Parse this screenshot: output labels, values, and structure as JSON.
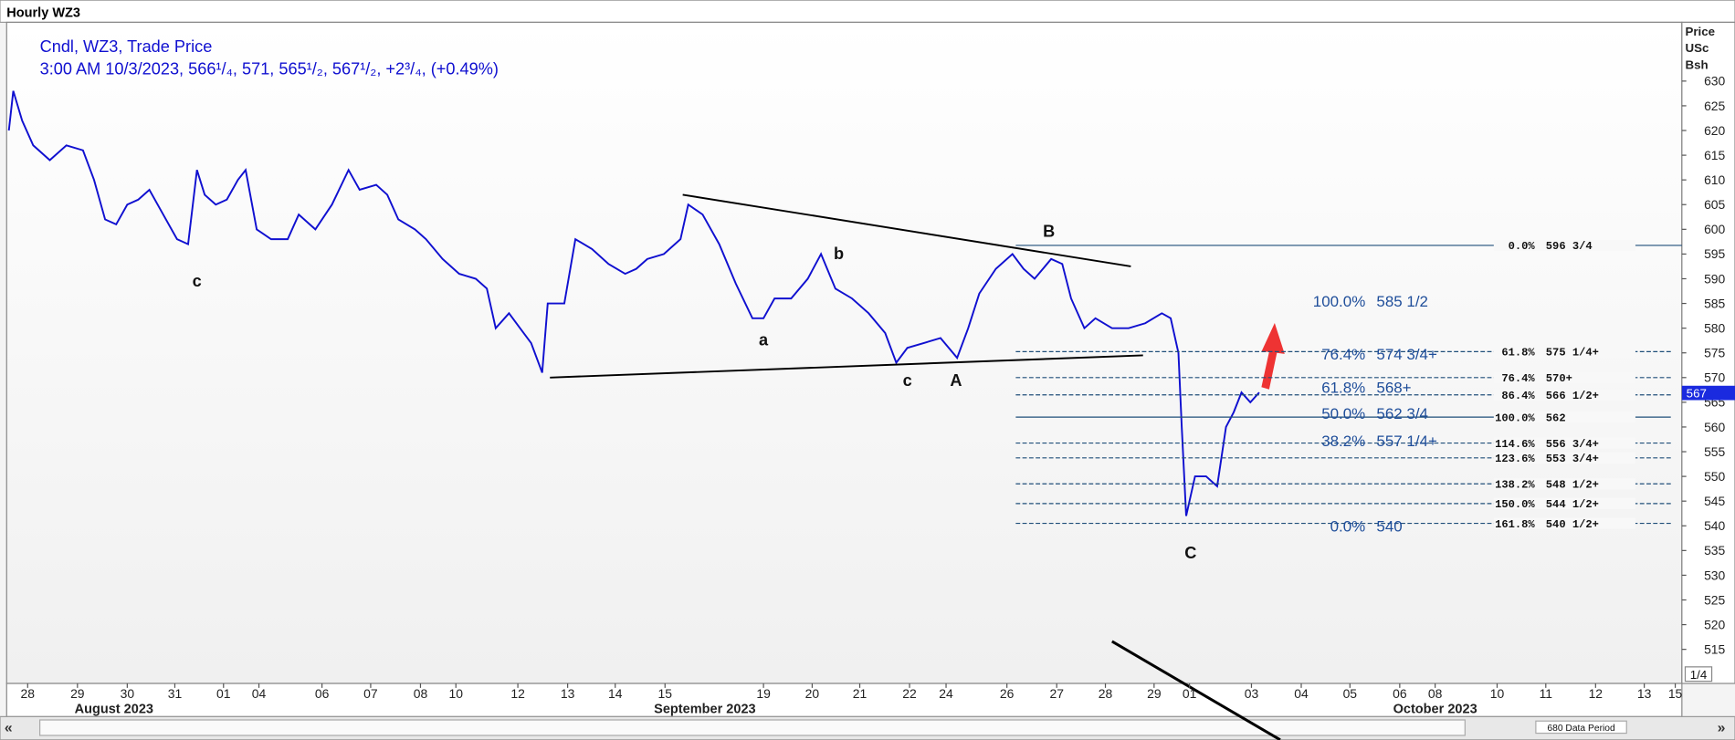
{
  "chart_data": {
    "type": "line",
    "title": "Hourly WZ3",
    "legend_line1": "Cndl, WZ3, Trade Price",
    "legend_line2": "3:00 AM 10/3/2023, 566¹/₄, 571, 565¹/₂, 567¹/₂, +2³/₄, (+0.49%)",
    "y_label": [
      "Price",
      "USc",
      "Bsh"
    ],
    "series": [
      {
        "name": "WZ3",
        "color": "#1010d0",
        "x": [
          0,
          0.4,
          1.2,
          2.2,
          3.7,
          5.2,
          6.7,
          7.7,
          8.7,
          9.7,
          10.7,
          11.7,
          12.7,
          13.7,
          15.2,
          16.2,
          17.0,
          17.7,
          18.7,
          19.7,
          20.7,
          21.4,
          22.4,
          23.7,
          25.2,
          26.2,
          27.7,
          29.2,
          30.7,
          31.7,
          33.2,
          34.2,
          35.2,
          36.7,
          37.7,
          39.2,
          40.7,
          42.2,
          43.2,
          44.0,
          45.2,
          46.2,
          47.2,
          48.2,
          48.7,
          50.2,
          51.2,
          52.7,
          54.2,
          55.7,
          56.7,
          57.7,
          59.2,
          60.7,
          61.4,
          62.7,
          64.2,
          65.7,
          67.2,
          68.2,
          69.2,
          70.7,
          72.2,
          73.4,
          74.7,
          76.2,
          77.7,
          79.2,
          80.2,
          81.2,
          82.7,
          84.2,
          85.7,
          86.7,
          87.7,
          89.2,
          90.7,
          91.7,
          92.7,
          94.2,
          95.2,
          96.0,
          97.2,
          98.2,
          99.7,
          101.2,
          102.7,
          104.2,
          105.0,
          105.7,
          106.0,
          106.4,
          107.2,
          108.2,
          109.2,
          110.0,
          110.7,
          111.4,
          112.2,
          113.0
        ],
        "values": [
          620,
          628,
          622,
          617,
          614,
          617,
          616,
          610,
          602,
          601,
          605,
          606,
          608,
          604,
          598,
          597,
          612,
          607,
          605,
          606,
          610,
          612,
          600,
          598,
          598,
          603,
          600,
          605,
          612,
          608,
          609,
          607,
          602,
          600,
          598,
          594,
          591,
          590,
          588,
          580,
          583,
          580,
          577,
          571,
          585,
          585,
          598,
          596,
          593,
          591,
          592,
          594,
          595,
          598,
          605,
          603,
          597,
          589,
          582,
          582,
          586,
          586,
          590,
          595,
          588,
          586,
          583,
          579,
          573,
          576,
          577,
          578,
          574,
          580,
          587,
          592,
          595,
          592,
          590,
          594,
          593,
          586,
          580,
          582,
          580,
          580,
          581,
          583,
          582,
          575,
          560,
          542,
          550,
          550,
          548,
          560,
          563,
          567,
          565,
          567
        ]
      }
    ],
    "xlim": [
      0,
      151.2
    ],
    "ylim": [
      508.1,
      641.9
    ],
    "yticks": [
      515,
      520,
      525,
      530,
      535,
      540,
      545,
      550,
      555,
      560,
      565,
      570,
      575,
      580,
      585,
      590,
      595,
      600,
      605,
      610,
      615,
      620,
      625,
      630
    ],
    "xticks": [
      {
        "value": 1.7,
        "label": "28"
      },
      {
        "value": 6.2,
        "label": "29"
      },
      {
        "value": 10.7,
        "label": "30"
      },
      {
        "value": 15.0,
        "label": "31"
      },
      {
        "value": 19.4,
        "label": "01"
      },
      {
        "value": 22.6,
        "label": "04"
      },
      {
        "value": 28.3,
        "label": "06"
      },
      {
        "value": 32.7,
        "label": "07"
      },
      {
        "value": 37.2,
        "label": "08"
      },
      {
        "value": 40.4,
        "label": "10"
      },
      {
        "value": 46.0,
        "label": "12"
      },
      {
        "value": 50.5,
        "label": "13"
      },
      {
        "value": 54.8,
        "label": "14"
      },
      {
        "value": 59.3,
        "label": "15"
      },
      {
        "value": 68.2,
        "label": "19"
      },
      {
        "value": 72.6,
        "label": "20"
      },
      {
        "value": 76.9,
        "label": "21"
      },
      {
        "value": 81.4,
        "label": "22"
      },
      {
        "value": 84.7,
        "label": "24"
      },
      {
        "value": 90.2,
        "label": "26"
      },
      {
        "value": 94.7,
        "label": "27"
      },
      {
        "value": 99.1,
        "label": "28"
      },
      {
        "value": 103.5,
        "label": "29"
      },
      {
        "value": 106.7,
        "label": "01"
      },
      {
        "value": 112.3,
        "label": "03"
      },
      {
        "value": 116.8,
        "label": "04"
      },
      {
        "value": 121.2,
        "label": "05"
      },
      {
        "value": 125.7,
        "label": "06"
      },
      {
        "value": 128.9,
        "label": "08"
      },
      {
        "value": 134.5,
        "label": "10"
      },
      {
        "value": 138.9,
        "label": "11"
      },
      {
        "value": 143.4,
        "label": "12"
      },
      {
        "value": 147.8,
        "label": "13"
      },
      {
        "value": 150.6,
        "label": "15"
      }
    ],
    "months": [
      {
        "value": 9.5,
        "label": "August 2023"
      },
      {
        "value": 62.9,
        "label": "September 2023"
      },
      {
        "value": 128.9,
        "label": "October 2023"
      }
    ],
    "trendlines": [
      {
        "x": [
          60.9,
          101.4
        ],
        "values": [
          607,
          592.5
        ]
      },
      {
        "x": [
          48.9,
          102.5
        ],
        "values": [
          570,
          574.5
        ]
      }
    ],
    "wave_labels": [
      {
        "x": 17.0,
        "value": 589.5,
        "label": "c"
      },
      {
        "x": 68.2,
        "value": 577.6,
        "label": "a"
      },
      {
        "x": 75.0,
        "value": 595.1,
        "label": "b"
      },
      {
        "x": 81.2,
        "value": 569.4,
        "label": "c"
      },
      {
        "x": 85.6,
        "value": 569.4,
        "label": "A"
      },
      {
        "x": 94.0,
        "value": 599.6,
        "label": "B"
      },
      {
        "x": 106.8,
        "value": 534.5,
        "label": "C"
      }
    ],
    "fib_extension": [
      {
        "value": 596.75,
        "label": "0.0%",
        "price_label": "596 3/4",
        "solid": true
      },
      {
        "value": 575.25,
        "label": "61.8%",
        "price_label": "575 1/4+"
      },
      {
        "value": 570,
        "label": "76.4%",
        "price_label": "570+"
      },
      {
        "value": 566.5,
        "label": "86.4%",
        "price_label": "566 1/2+"
      },
      {
        "value": 562,
        "label": "100.0%",
        "price_label": "562",
        "solid": true
      },
      {
        "value": 556.75,
        "label": "114.6%",
        "price_label": "556 3/4+"
      },
      {
        "value": 553.75,
        "label": "123.6%",
        "price_label": "553 3/4+"
      },
      {
        "value": 548.5,
        "label": "138.2%",
        "price_label": "548 1/2+"
      },
      {
        "value": 544.5,
        "label": "150.0%",
        "price_label": "544 1/2+"
      },
      {
        "value": 540.5,
        "label": "161.8%",
        "price_label": "540 1/2+"
      }
    ],
    "fib_retracement": [
      {
        "value": 585.5,
        "label": "100.0%",
        "price_label": "585 1/2"
      },
      {
        "value": 574.75,
        "label": "76.4%",
        "price_label": "574 3/4+"
      },
      {
        "value": 568,
        "label": "61.8%",
        "price_label": "568+"
      },
      {
        "value": 562.75,
        "label": "50.0%",
        "price_label": "562 3/4"
      },
      {
        "value": 557.25,
        "label": "38.2%",
        "price_label": "557 1/4+"
      },
      {
        "value": 540,
        "label": "0.0%",
        "price_label": "540"
      }
    ],
    "last_price": 567,
    "footer": "680 Data Period",
    "zoom": "1/4"
  }
}
